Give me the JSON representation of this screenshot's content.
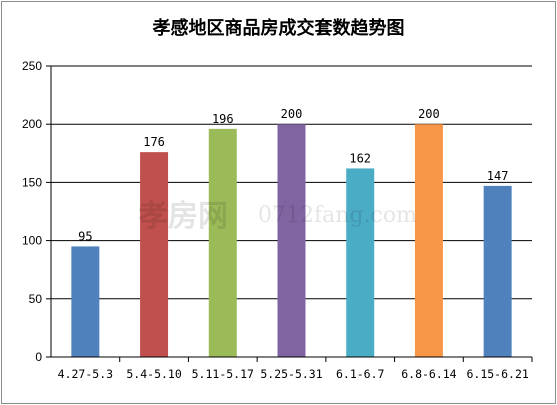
{
  "chart_data": {
    "type": "bar",
    "title": "孝感地区商品房成交套数趋势图",
    "xlabel": "",
    "ylabel": "",
    "categories": [
      "4.27-5.3",
      "5.4-5.10",
      "5.11-5.17",
      "5.25-5.31",
      "6.1-6.7",
      "6.8-6.14",
      "6.15-6.21"
    ],
    "values": [
      95,
      176,
      196,
      200,
      162,
      200,
      147
    ],
    "colors": [
      "#4f81bd",
      "#c0504d",
      "#9bbb59",
      "#8064a2",
      "#4bacc6",
      "#f79646",
      "#4f81bd"
    ],
    "ylim": [
      0,
      250
    ],
    "yticks": [
      0,
      50,
      100,
      150,
      200,
      250
    ],
    "grid": true,
    "legend": "none"
  },
  "watermark": {
    "brand": "孝房网",
    "site": "0712fang.com"
  }
}
